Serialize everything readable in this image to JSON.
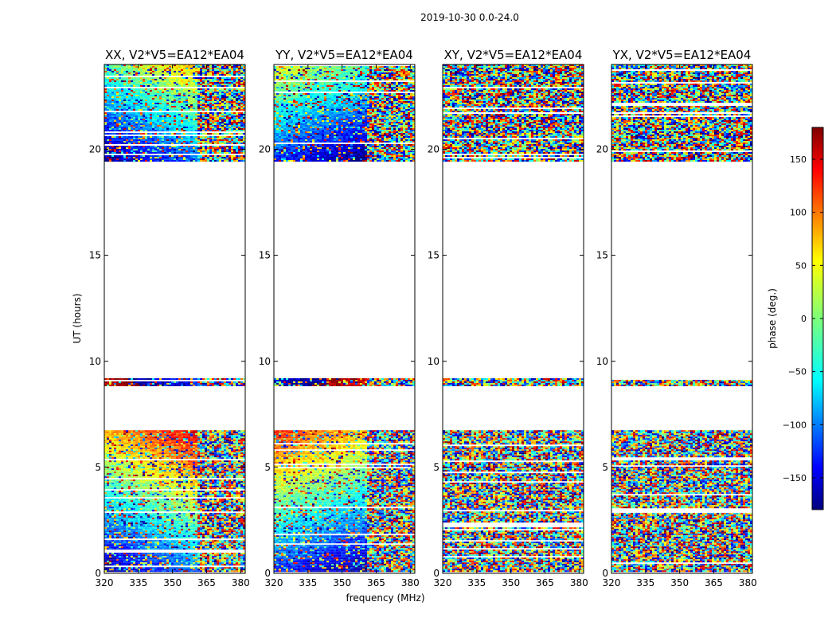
{
  "chart_data": {
    "type": "heatmap",
    "suptitle": "2019-10-30 0.0-24.0",
    "xlabel": "frequency (MHz)",
    "ylabel": "UT (hours)",
    "xlim": [
      320,
      382
    ],
    "ylim": [
      0,
      24
    ],
    "xticks": [
      320,
      335,
      350,
      365,
      380
    ],
    "yticks": [
      0,
      5,
      10,
      15,
      20
    ],
    "panels": [
      {
        "title": "XX, V2*V5=EA12*EA04",
        "pol": "XX"
      },
      {
        "title": "YY, V2*V5=EA12*EA04",
        "pol": "YY"
      },
      {
        "title": "XY, V2*V5=EA12*EA04",
        "pol": "XY"
      },
      {
        "title": "YX, V2*V5=EA12*EA04",
        "pol": "YX"
      }
    ],
    "data_intervals_hours": [
      {
        "start": 0.0,
        "end": 6.75
      },
      {
        "start": 8.8,
        "end": 9.2
      },
      {
        "start": 19.4,
        "end": 24.0
      }
    ],
    "colorbar": {
      "label": "phase (deg.)",
      "range": [
        -180,
        180
      ],
      "ticks": [
        -150,
        -100,
        -50,
        0,
        50,
        100,
        150
      ],
      "colormap": "jet",
      "tick_format_note": "−"
    }
  }
}
